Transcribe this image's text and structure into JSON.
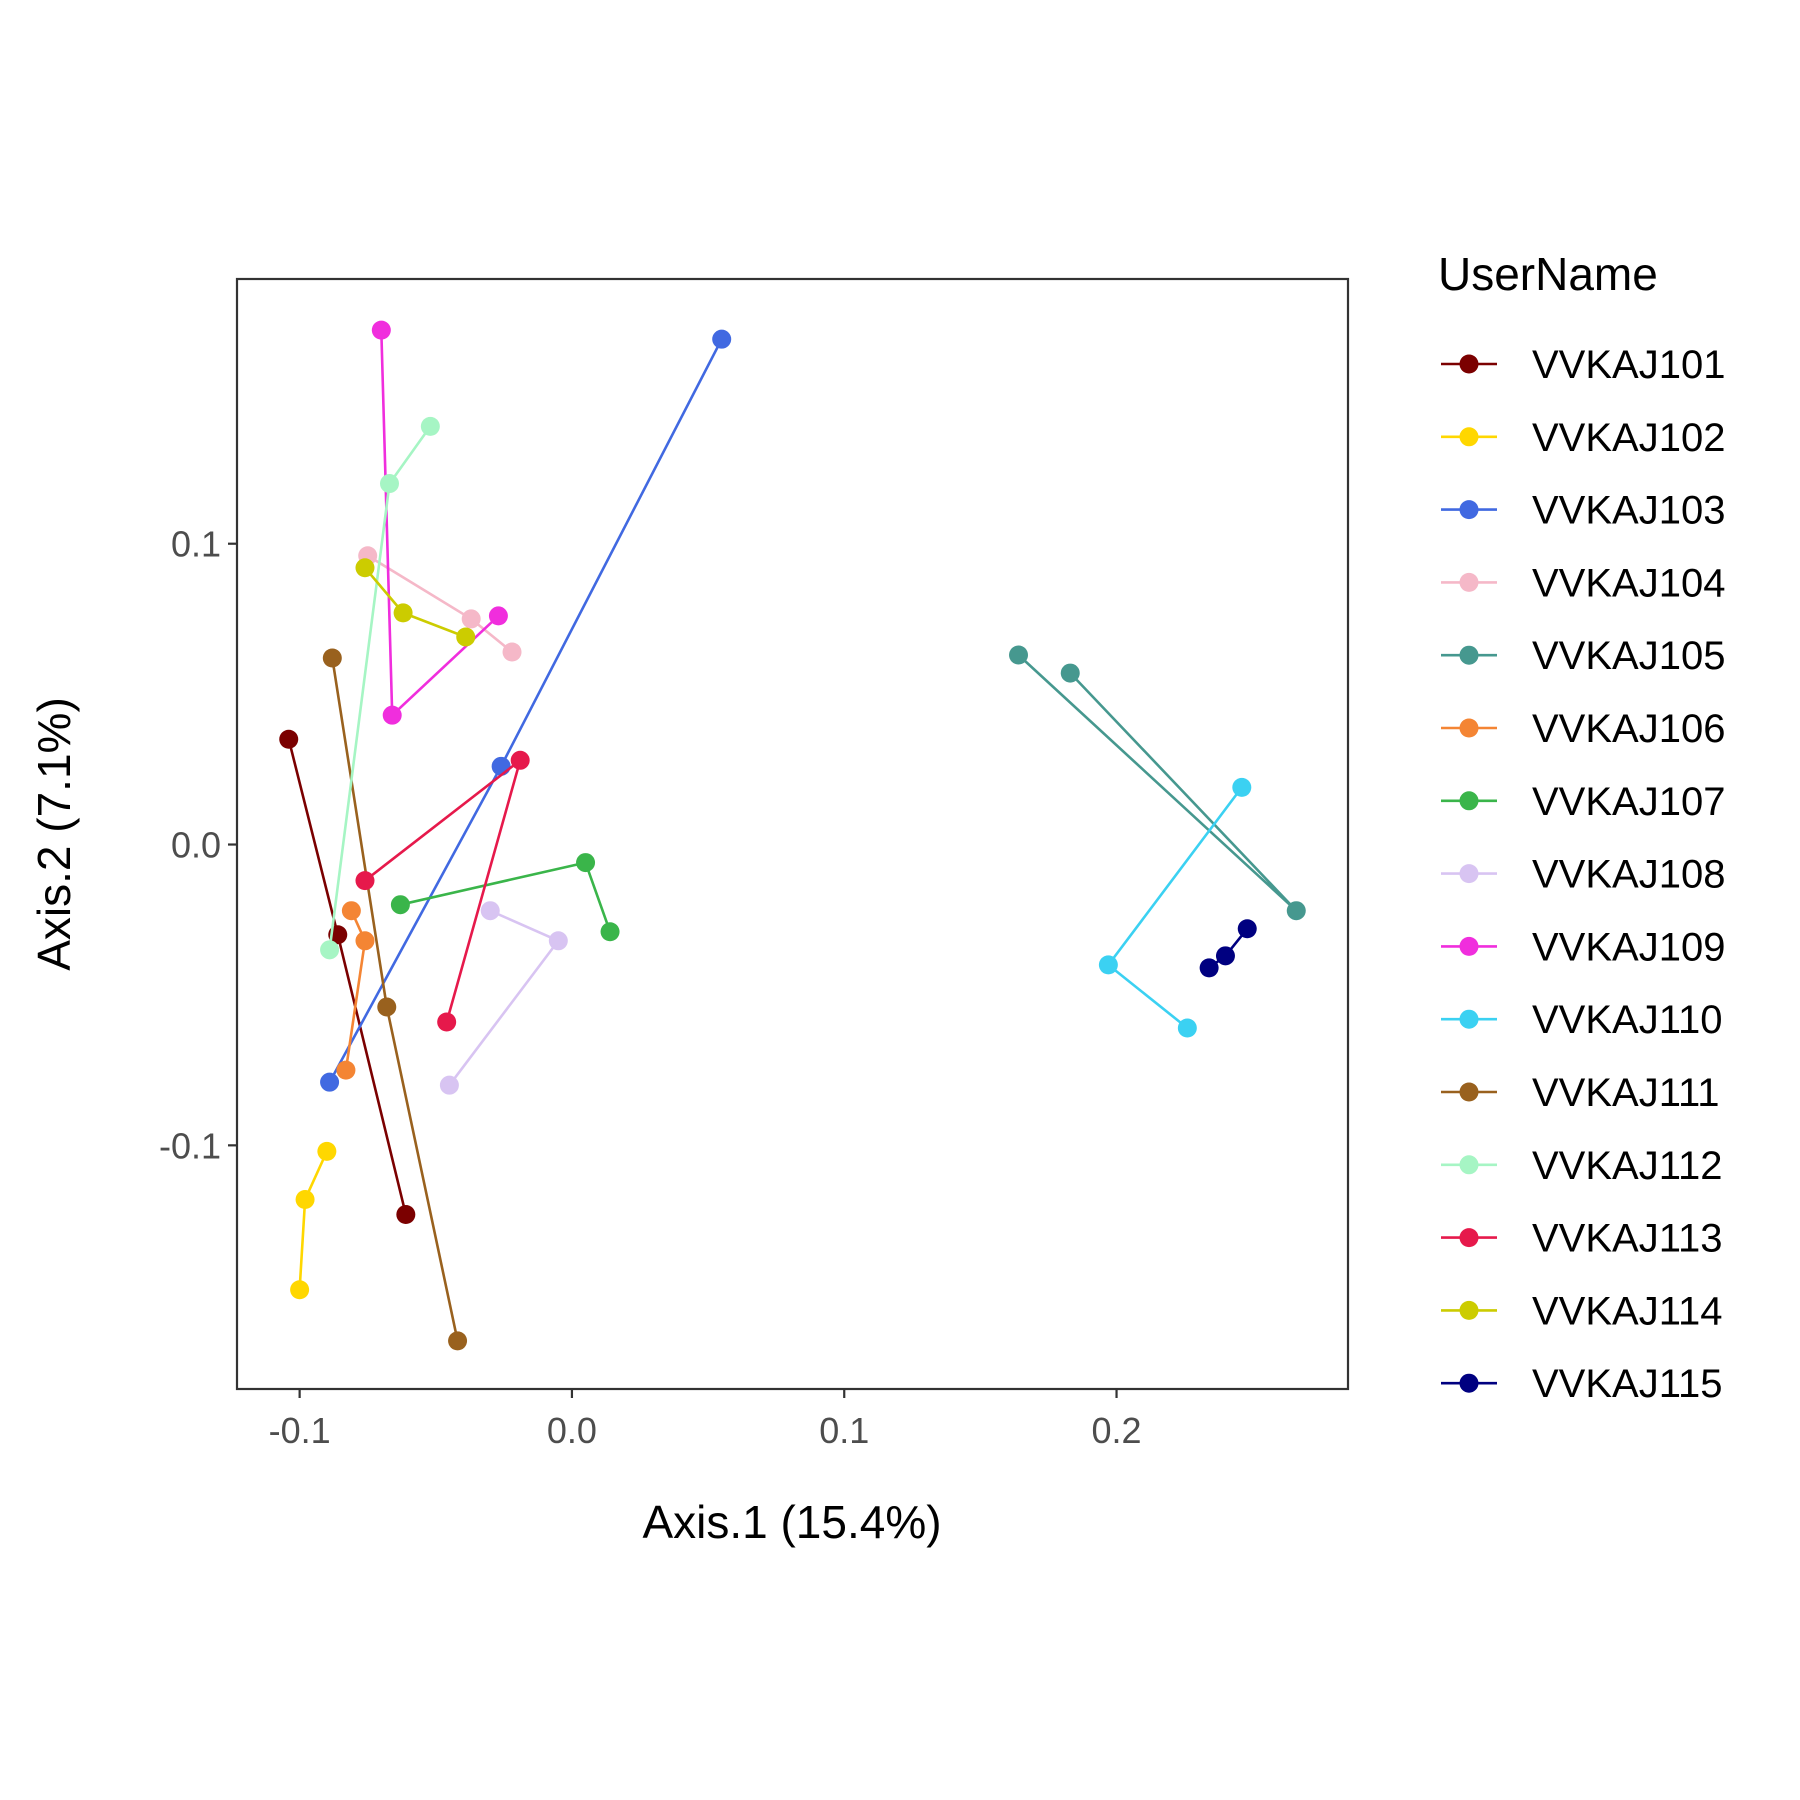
{
  "chart_data": {
    "type": "line",
    "title": "",
    "xlabel": "Axis.1 (15.4%)",
    "ylabel": "Axis.2 (7.1%)",
    "xlim": [
      -0.123,
      0.285
    ],
    "ylim": [
      -0.181,
      0.188
    ],
    "x_ticks": [
      -0.1,
      0.0,
      0.1,
      0.2
    ],
    "y_ticks": [
      -0.1,
      0.0,
      0.1
    ],
    "x_tick_labels": [
      "-0.1",
      "0.0",
      "0.1",
      "0.2"
    ],
    "y_tick_labels": [
      "-0.1",
      "0.0",
      "0.1"
    ],
    "grid": false,
    "legend_position": "right",
    "legend_title": "UserName",
    "series": [
      {
        "name": "VVKAJ101",
        "color": "#7B0000",
        "points": [
          [
            -0.104,
            0.035
          ],
          [
            -0.086,
            -0.03
          ],
          [
            -0.061,
            -0.123
          ]
        ]
      },
      {
        "name": "VVKAJ102",
        "color": "#FFD700",
        "points": [
          [
            -0.09,
            -0.102
          ],
          [
            -0.098,
            -0.118
          ],
          [
            -0.1,
            -0.148
          ]
        ]
      },
      {
        "name": "VVKAJ103",
        "color": "#4169E1",
        "points": [
          [
            0.055,
            0.168
          ],
          [
            -0.026,
            0.026
          ],
          [
            -0.089,
            -0.079
          ]
        ]
      },
      {
        "name": "VVKAJ104",
        "color": "#F5B8C8",
        "points": [
          [
            -0.075,
            0.096
          ],
          [
            -0.037,
            0.075
          ],
          [
            -0.022,
            0.064
          ]
        ]
      },
      {
        "name": "VVKAJ105",
        "color": "#46988F",
        "points": [
          [
            0.164,
            0.063
          ],
          [
            0.266,
            -0.022
          ],
          [
            0.183,
            0.057
          ]
        ]
      },
      {
        "name": "VVKAJ106",
        "color": "#F48534",
        "points": [
          [
            -0.081,
            -0.022
          ],
          [
            -0.076,
            -0.032
          ],
          [
            -0.083,
            -0.075
          ]
        ]
      },
      {
        "name": "VVKAJ107",
        "color": "#3AB54A",
        "points": [
          [
            -0.063,
            -0.02
          ],
          [
            0.005,
            -0.006
          ],
          [
            0.014,
            -0.029
          ]
        ]
      },
      {
        "name": "VVKAJ108",
        "color": "#D8C4F2",
        "points": [
          [
            -0.03,
            -0.022
          ],
          [
            -0.005,
            -0.032
          ],
          [
            -0.045,
            -0.08
          ]
        ]
      },
      {
        "name": "VVKAJ109",
        "color": "#F02EDD",
        "points": [
          [
            -0.07,
            0.171
          ],
          [
            -0.066,
            0.043
          ],
          [
            -0.027,
            0.076
          ]
        ]
      },
      {
        "name": "VVKAJ110",
        "color": "#3BD1F2",
        "points": [
          [
            0.246,
            0.019
          ],
          [
            0.197,
            -0.04
          ],
          [
            0.226,
            -0.061
          ]
        ]
      },
      {
        "name": "VVKAJ111",
        "color": "#99611E",
        "points": [
          [
            -0.088,
            0.062
          ],
          [
            -0.068,
            -0.054
          ],
          [
            -0.042,
            -0.165
          ]
        ]
      },
      {
        "name": "VVKAJ112",
        "color": "#A6F5C4",
        "points": [
          [
            -0.052,
            0.139
          ],
          [
            -0.067,
            0.12
          ],
          [
            -0.089,
            -0.035
          ]
        ]
      },
      {
        "name": "VVKAJ113",
        "color": "#E6194B",
        "points": [
          [
            -0.076,
            -0.012
          ],
          [
            -0.019,
            0.028
          ],
          [
            -0.046,
            -0.059
          ]
        ]
      },
      {
        "name": "VVKAJ114",
        "color": "#CCCC00",
        "points": [
          [
            -0.076,
            0.092
          ],
          [
            -0.062,
            0.077
          ],
          [
            -0.039,
            0.069
          ]
        ]
      },
      {
        "name": "VVKAJ115",
        "color": "#000080",
        "points": [
          [
            0.234,
            -0.041
          ],
          [
            0.24,
            -0.037
          ],
          [
            0.248,
            -0.028
          ]
        ]
      }
    ]
  }
}
